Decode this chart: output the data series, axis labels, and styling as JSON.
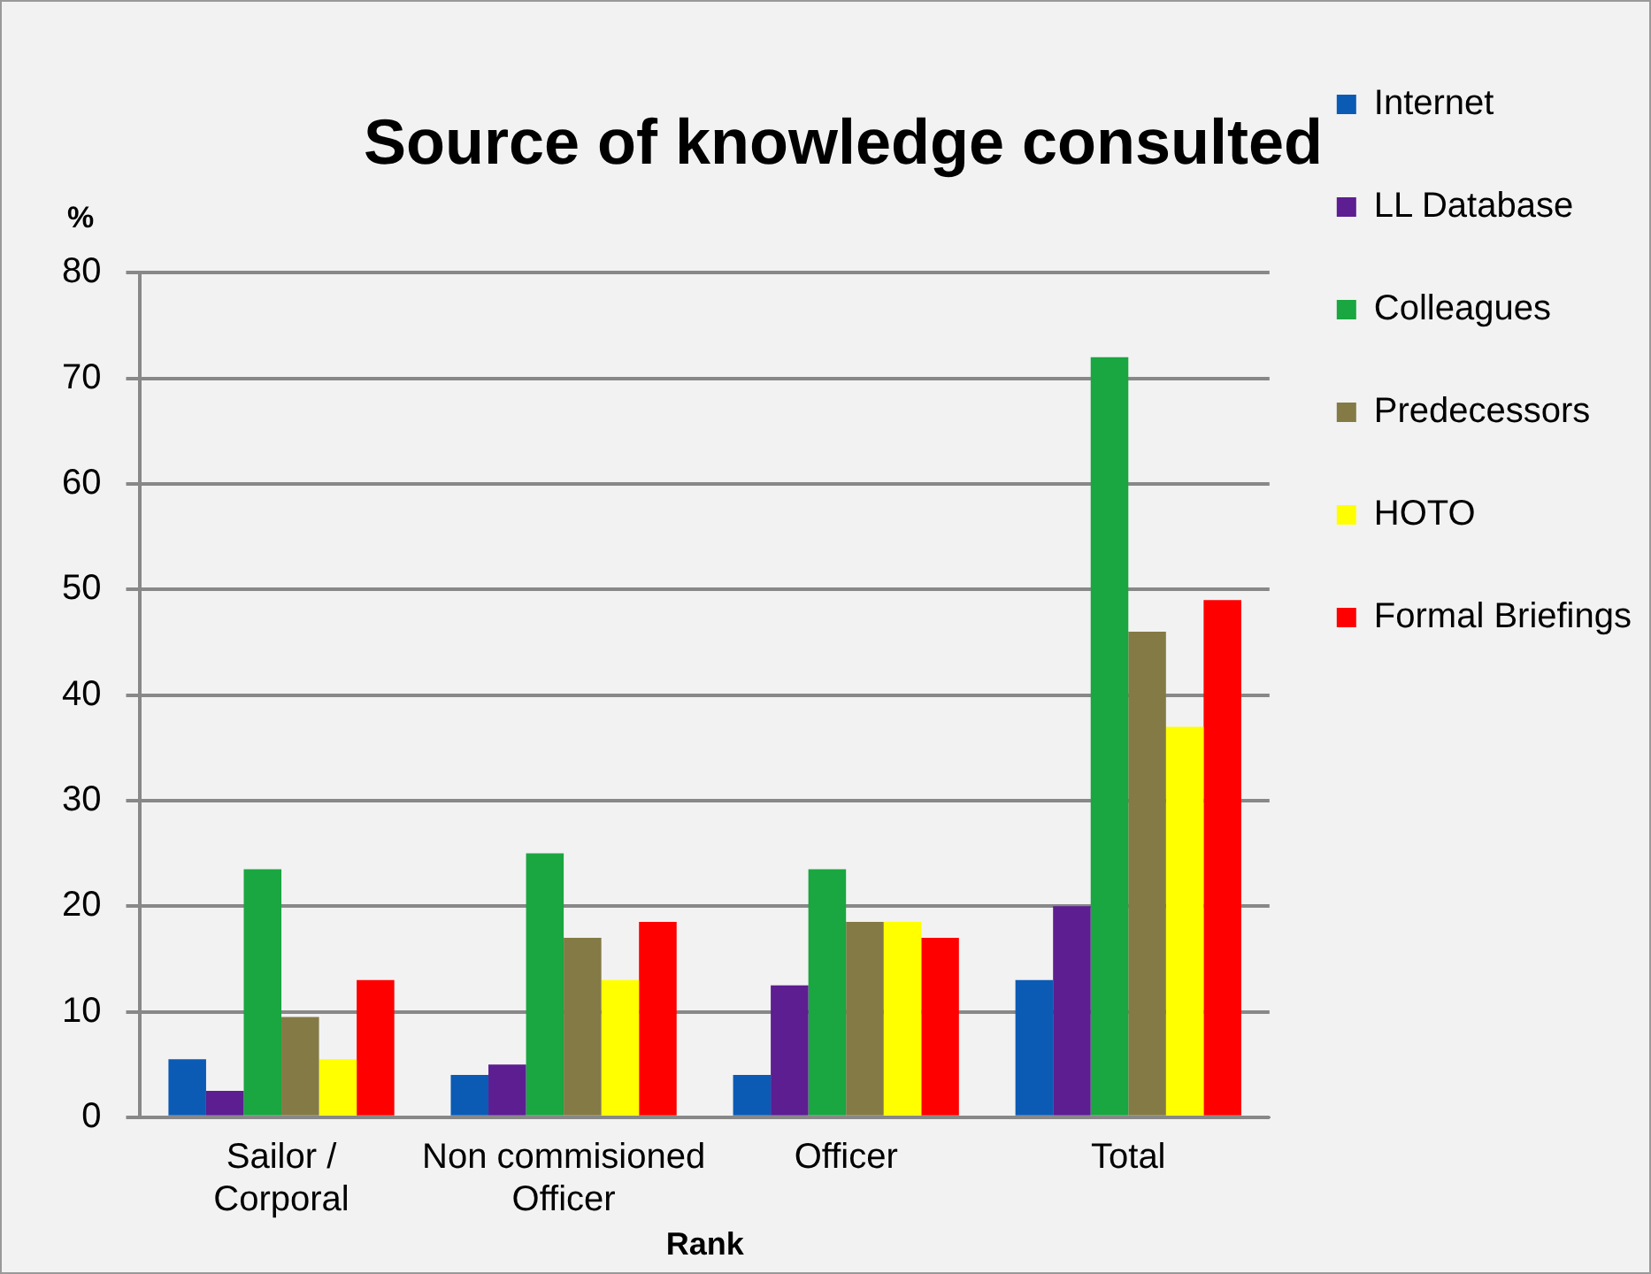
{
  "chart_data": {
    "type": "bar",
    "title": "Source of knowledge consulted",
    "xlabel": "Rank",
    "ylabel": "%",
    "categories": [
      "Sailor / Corporal",
      "Non commisioned Officer",
      "Officer",
      "Total"
    ],
    "series": [
      {
        "name": "Internet",
        "color": "#0b5bb5",
        "values": [
          5.5,
          4,
          4,
          13
        ]
      },
      {
        "name": "LL Database",
        "color": "#5c1e91",
        "values": [
          2.5,
          5,
          12.5,
          20
        ]
      },
      {
        "name": "Colleagues",
        "color": "#1aa640",
        "values": [
          23.5,
          25,
          23.5,
          72
        ]
      },
      {
        "name": "Predecessors",
        "color": "#847a45",
        "values": [
          9.5,
          17,
          18.5,
          46
        ]
      },
      {
        "name": "HOTO",
        "color": "#ffff00",
        "values": [
          5.5,
          13,
          18.5,
          37
        ]
      },
      {
        "name": "Formal Briefings",
        "color": "#ff0000",
        "values": [
          13,
          18.5,
          17,
          49
        ]
      }
    ],
    "ylim": [
      0,
      80
    ],
    "yticks": [
      0,
      10,
      20,
      30,
      40,
      50,
      60,
      70,
      80
    ],
    "grid": "y",
    "legend": "right"
  }
}
